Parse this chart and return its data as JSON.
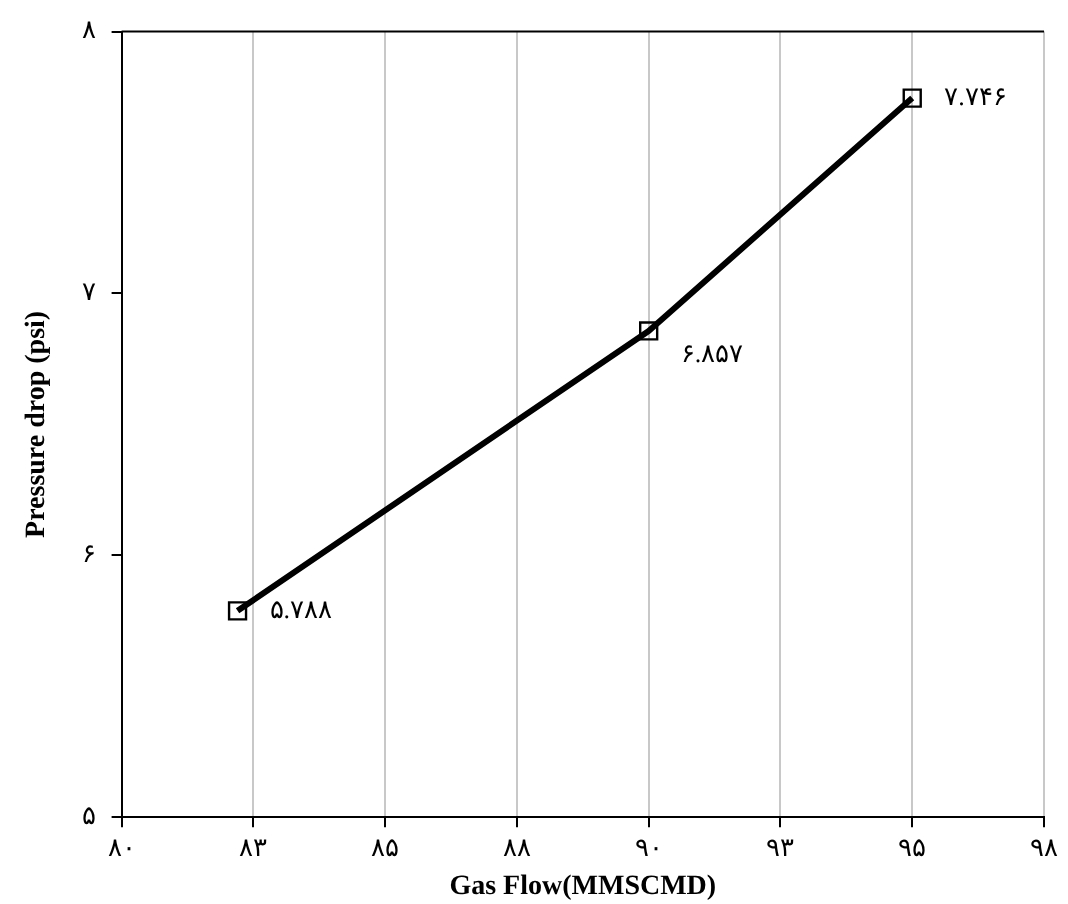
{
  "chart_data": {
    "type": "line",
    "xlabel": "Gas Flow(MMSCMD)",
    "ylabel": "Pressure drop (psi)",
    "x": [
      82.2,
      90,
      95
    ],
    "series": [
      {
        "color": "#000000",
        "values": [
          5.788,
          6.857,
          7.746
        ],
        "value_labels": [
          "۵.۷۸۸",
          "۶.۸۵۷",
          "۷.۷۴۶"
        ]
      }
    ],
    "xlim": [
      80,
      97.5
    ],
    "xticks": [
      {
        "value": 80,
        "label": "۸۰"
      },
      {
        "value": 82.5,
        "label": "۸۳"
      },
      {
        "value": 85,
        "label": "۸۵"
      },
      {
        "value": 87.5,
        "label": "۸۸"
      },
      {
        "value": 90,
        "label": "۹۰"
      },
      {
        "value": 92.5,
        "label": "۹۳"
      },
      {
        "value": 95,
        "label": "۹۵"
      },
      {
        "value": 97.5,
        "label": "۹۸"
      }
    ],
    "ylim": [
      5,
      8
    ],
    "yticks": [
      {
        "value": 5,
        "label": "۵"
      },
      {
        "value": 6,
        "label": "۶"
      },
      {
        "value": 7,
        "label": "۷"
      },
      {
        "value": 8,
        "label": "۸"
      }
    ],
    "grid": "x",
    "legend": false,
    "marker": "square",
    "line_style": "solid"
  }
}
